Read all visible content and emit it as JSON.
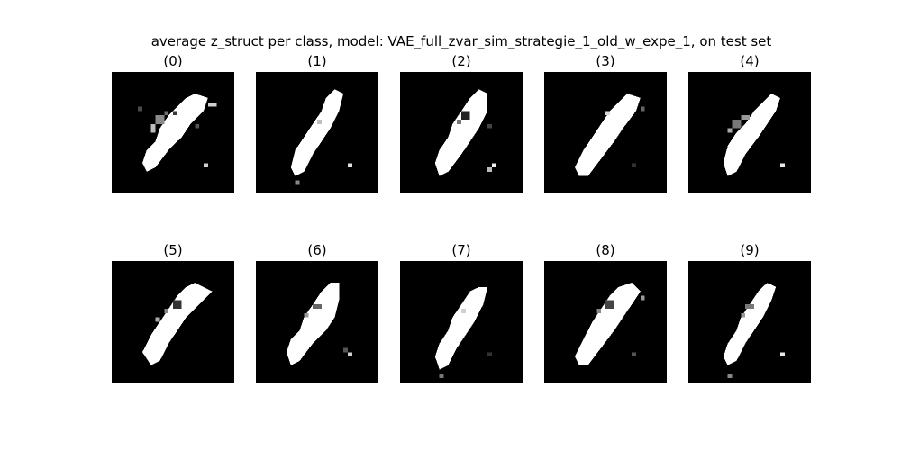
{
  "figure": {
    "title": "average z_struct per class, model: VAE_full_zvar_sim_strategie_1_old_w_expe_1, on test set",
    "background_color": "#ffffff",
    "image_background": "#000000",
    "image_foreground": "#ffffff"
  },
  "panels": [
    {
      "label": "(0)"
    },
    {
      "label": "(1)"
    },
    {
      "label": "(2)"
    },
    {
      "label": "(3)"
    },
    {
      "label": "(4)"
    },
    {
      "label": "(5)"
    },
    {
      "label": "(6)"
    },
    {
      "label": "(7)"
    },
    {
      "label": "(8)"
    },
    {
      "label": "(9)"
    }
  ]
}
